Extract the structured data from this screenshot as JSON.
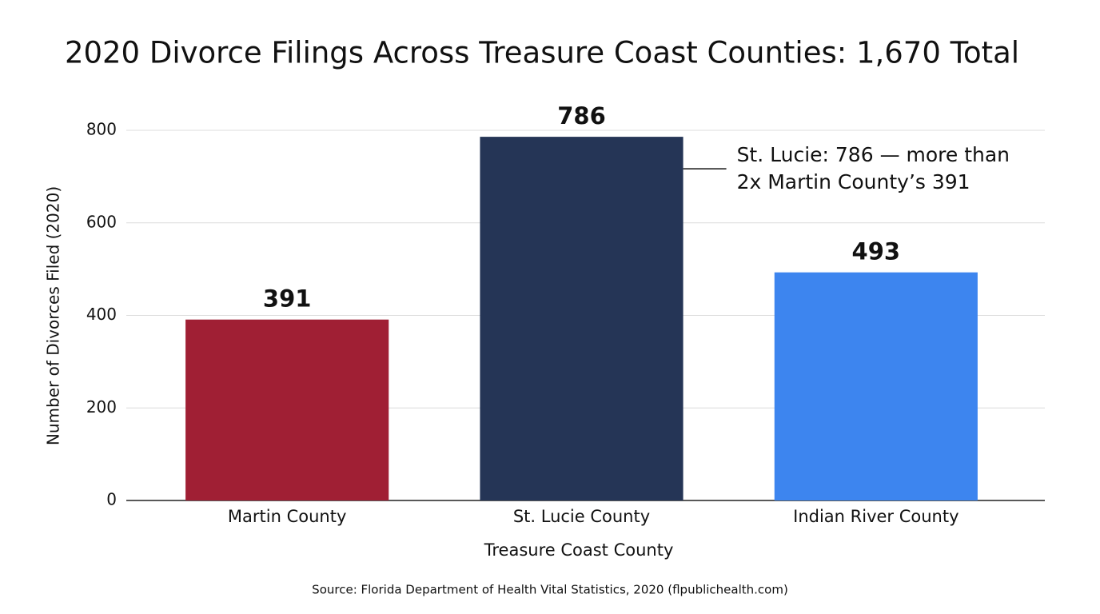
{
  "chart_data": {
    "type": "bar",
    "title": "2020 Divorce Filings Across Treasure Coast Counties: 1,670 Total",
    "categories": [
      "Martin County",
      "St. Lucie County",
      "Indian River County"
    ],
    "values": [
      391,
      786,
      493
    ],
    "colors": [
      "#a01f34",
      "#253556",
      "#3d85ef"
    ],
    "ylim": [
      0,
      800
    ],
    "yticks": [
      0,
      200,
      400,
      600,
      800
    ],
    "grid": true,
    "xlabel": "Treasure Coast County",
    "ylabel": "Number of Divorces Filed (2020)",
    "annotation": [
      "St. Lucie: 786 — more than",
      "2x Martin County’s 391"
    ],
    "source": "Source: Florida Department of Health Vital Statistics, 2020 (flpublichealth.com)"
  }
}
